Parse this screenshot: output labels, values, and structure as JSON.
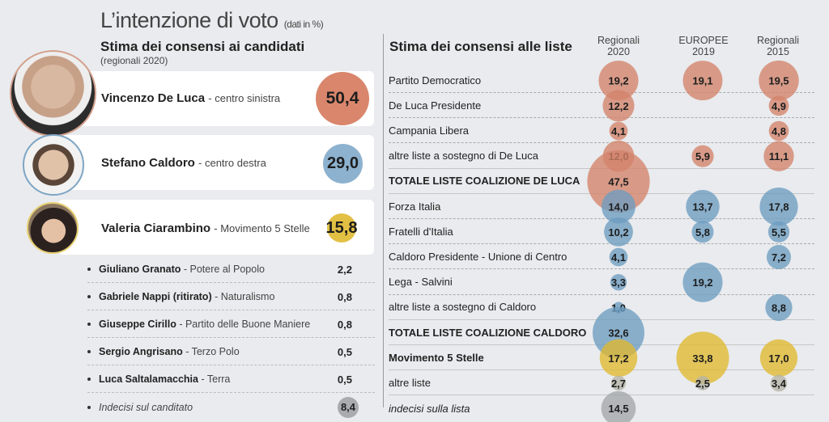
{
  "title": "L’intenzione di voto",
  "title_note": "(dati in %)",
  "colors": {
    "deluca": "#d4836a",
    "caldoro": "#6d9cc0",
    "m5s": "#e0b92f",
    "other": "#b5b3a8",
    "undecided": "#a3a6ab"
  },
  "candidates_section": {
    "heading": "Stima dei consensi ai candidati",
    "subheading": "(regionali 2020)",
    "main": [
      {
        "name": "Vincenzo De Luca",
        "party": "centro sinistra",
        "value": "50,4",
        "color": "#d4836a"
      },
      {
        "name": "Stefano Caldoro",
        "party": "centro destra",
        "value": "29,0",
        "color": "#86adcb"
      },
      {
        "name": "Valeria Ciarambino",
        "party": "Movimento 5 Stelle",
        "value": "15,8",
        "color": "#e2c043"
      }
    ],
    "minor": [
      {
        "name": "Giuliano Granato",
        "party": "Potere al Popolo",
        "value": "2,2"
      },
      {
        "name": "Gabriele Nappi (ritirato)",
        "party": "Naturalismo",
        "value": "0,8"
      },
      {
        "name": "Giuseppe Cirillo",
        "party": "Partito delle Buone Maniere",
        "value": "0,8"
      },
      {
        "name": "Sergio Angrisano",
        "party": "Terzo Polo",
        "value": "0,5"
      },
      {
        "name": "Luca Saltalamacchia",
        "party": "Terra",
        "value": "0,5"
      },
      {
        "name": "Indecisi sul canditato",
        "party": "",
        "value": "8,4"
      }
    ]
  },
  "lists_section": {
    "heading": "Stima dei consensi alle liste",
    "columns": [
      {
        "line1": "Regionali",
        "line2": "2020"
      },
      {
        "line1": "EUROPEE",
        "line2": "2019"
      },
      {
        "line1": "Regionali",
        "line2": "2015"
      }
    ]
  },
  "chart_data": {
    "type": "table",
    "title": "L’intenzione di voto (dati in %)",
    "candidates": {
      "title": "Stima dei consensi ai candidati (regionali 2020)",
      "rows": [
        {
          "name": "Vincenzo De Luca",
          "coalition": "centro sinistra",
          "value": 50.4
        },
        {
          "name": "Stefano Caldoro",
          "coalition": "centro destra",
          "value": 29.0
        },
        {
          "name": "Valeria Ciarambino",
          "coalition": "Movimento 5 Stelle",
          "value": 15.8
        },
        {
          "name": "Giuliano Granato",
          "coalition": "Potere al Popolo",
          "value": 2.2
        },
        {
          "name": "Gabriele Nappi (ritirato)",
          "coalition": "Naturalismo",
          "value": 0.8
        },
        {
          "name": "Giuseppe Cirillo",
          "coalition": "Partito delle Buone Maniere",
          "value": 0.8
        },
        {
          "name": "Sergio Angrisano",
          "coalition": "Terzo Polo",
          "value": 0.5
        },
        {
          "name": "Luca Saltalamacchia",
          "coalition": "Terra",
          "value": 0.5
        },
        {
          "name": "Indecisi sul canditato",
          "coalition": "",
          "value": 8.4
        }
      ]
    },
    "lists": {
      "title": "Stima dei consensi alle liste",
      "columns": [
        "Regionali 2020",
        "EUROPEE 2019",
        "Regionali 2015"
      ],
      "rows": [
        {
          "label": "Partito Democratico",
          "group": "deluca",
          "style": "normal",
          "values": [
            "19,2",
            "19,1",
            "19,5"
          ]
        },
        {
          "label": "De Luca Presidente",
          "group": "deluca",
          "style": "normal",
          "values": [
            "12,2",
            null,
            "4,9"
          ]
        },
        {
          "label": "Campania Libera",
          "group": "deluca",
          "style": "normal",
          "values": [
            "4,1",
            null,
            "4,8"
          ]
        },
        {
          "label": "altre liste a sostegno di De Luca",
          "group": "deluca",
          "style": "normal",
          "values": [
            "12,0",
            "5,9",
            "11,1"
          ]
        },
        {
          "label": "TOTALE LISTE COALIZIONE DE LUCA",
          "group": "deluca",
          "style": "total",
          "values": [
            "47,5",
            null,
            null
          ]
        },
        {
          "label": "Forza Italia",
          "group": "caldoro",
          "style": "normal",
          "values": [
            "14,0",
            "13,7",
            "17,8"
          ]
        },
        {
          "label": "Fratelli d'Italia",
          "group": "caldoro",
          "style": "normal",
          "values": [
            "10,2",
            "5,8",
            "5,5"
          ]
        },
        {
          "label": "Caldoro Presidente - Unione di Centro",
          "group": "caldoro",
          "style": "normal",
          "values": [
            "4,1",
            null,
            "7,2"
          ]
        },
        {
          "label": "Lega - Salvini",
          "group": "caldoro",
          "style": "normal",
          "values": [
            "3,3",
            "19,2",
            null
          ]
        },
        {
          "label": "altre liste a sostegno di Caldoro",
          "group": "caldoro",
          "style": "normal",
          "values": [
            "1,0",
            null,
            "8,8"
          ]
        },
        {
          "label": "TOTALE LISTE COALIZIONE CALDORO",
          "group": "caldoro",
          "style": "total",
          "values": [
            "32,6",
            null,
            null
          ]
        },
        {
          "label": "Movimento 5 Stelle",
          "group": "m5s",
          "style": "bold",
          "values": [
            "17,2",
            "33,8",
            "17,0"
          ]
        },
        {
          "label": "altre liste",
          "group": "other",
          "style": "normal",
          "values": [
            "2,7",
            "2,5",
            "3,4"
          ]
        },
        {
          "label": "indecisi sulla lista",
          "group": "undecided",
          "style": "italic",
          "values": [
            "14,5",
            null,
            null
          ]
        }
      ]
    }
  }
}
